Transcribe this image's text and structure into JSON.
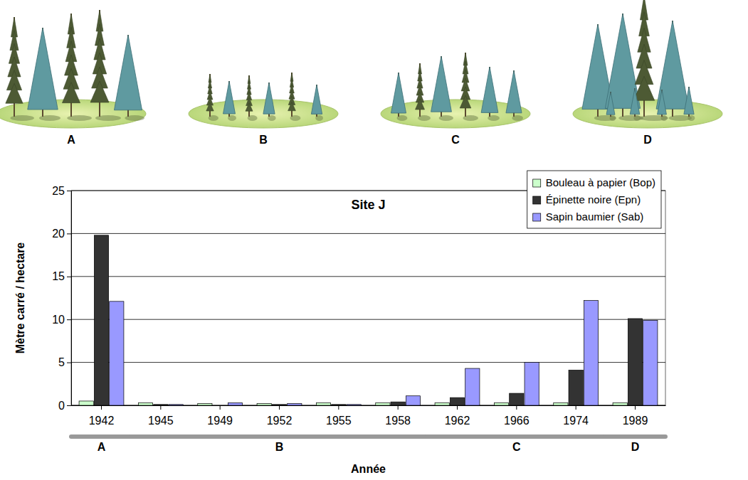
{
  "chart_data": {
    "type": "bar",
    "title": "Site J",
    "x_label": "Année",
    "y_label": "Mètre carré / hectare",
    "categories": [
      "1942",
      "1945",
      "1949",
      "1952",
      "1955",
      "1958",
      "1962",
      "1966",
      "1974",
      "1989"
    ],
    "series": [
      {
        "name": "Bouleau à papier (Bop)",
        "color": "#ccffcc",
        "values": [
          0.5,
          0.3,
          0.2,
          0.2,
          0.3,
          0.3,
          0.3,
          0.3,
          0.3,
          0.3
        ]
      },
      {
        "name": "Épinette noire (Epn)",
        "color": "#333333",
        "values": [
          19.8,
          0.1,
          0,
          0.1,
          0.1,
          0.4,
          0.9,
          1.4,
          4.1,
          10.1
        ]
      },
      {
        "name": "Sapin baumier (Sab)",
        "color": "#9999ff",
        "values": [
          12.1,
          0.1,
          0.3,
          0.2,
          0.1,
          1.1,
          4.3,
          5.0,
          12.2,
          9.9
        ]
      }
    ],
    "ylim": [
      0,
      25
    ],
    "yticks": [
      0,
      5,
      10,
      15,
      20,
      25
    ],
    "grid": true,
    "legend": "top-right",
    "annotations": [
      {
        "text": "A",
        "categories": [
          "1942"
        ]
      },
      {
        "text": "B",
        "categories": [
          "1945",
          "1949",
          "1952",
          "1955",
          "1958"
        ]
      },
      {
        "text": "C",
        "categories": [
          "1962",
          "1966",
          "1974"
        ]
      },
      {
        "text": "D",
        "categories": [
          "1989"
        ]
      }
    ]
  }
}
